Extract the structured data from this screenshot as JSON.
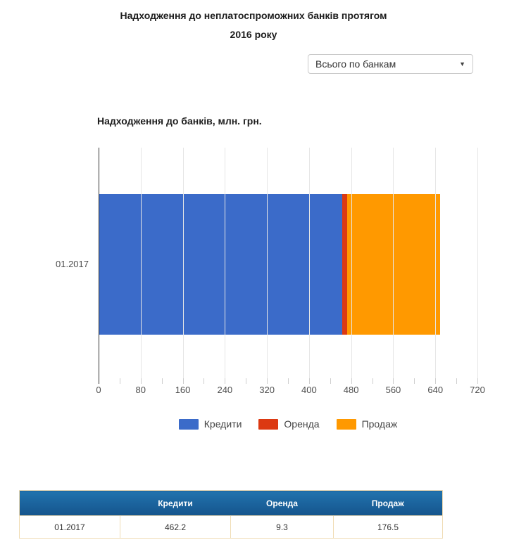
{
  "page_title": {
    "line1": "Надходження до неплатоспроможних банків протягом",
    "line2": "2016 року"
  },
  "filter": {
    "selected_option": "Всього по банкам"
  },
  "icons": {
    "chevron_down": "▼"
  },
  "chart_data": {
    "type": "bar",
    "orientation": "horizontal",
    "stacked": true,
    "title": "Надходження до банків, млн. грн.",
    "categories": [
      "01.2017"
    ],
    "series": [
      {
        "name": "Кредити",
        "color": "#3b6bc9",
        "values": [
          462.2
        ]
      },
      {
        "name": "Оренда",
        "color": "#dc3912",
        "values": [
          9.3
        ]
      },
      {
        "name": "Продаж",
        "color": "#ff9900",
        "values": [
          176.5
        ]
      }
    ],
    "xlim": [
      0,
      720
    ],
    "x_ticks": [
      0,
      80,
      160,
      240,
      320,
      400,
      480,
      560,
      640,
      720
    ],
    "minor_tick_step": 40,
    "grid": true,
    "legend_position": "bottom"
  },
  "table": {
    "headers": [
      "",
      "Кредити",
      "Оренда",
      "Продаж"
    ],
    "rows": [
      [
        "01.2017",
        "462.2",
        "9.3",
        "176.5"
      ]
    ]
  },
  "colors": {
    "series_blue": "#3b6bc9",
    "series_red": "#dc3912",
    "series_orange": "#ff9900",
    "table_header_top": "#2173ae",
    "table_header_bottom": "#15548c",
    "table_border": "#f0dcb4",
    "axis_line": "#333333",
    "gridline": "#e6e6e6"
  }
}
